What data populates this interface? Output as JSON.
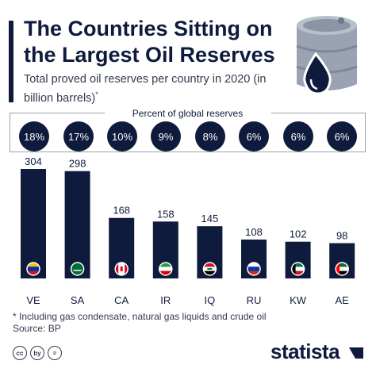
{
  "header": {
    "title": "The Countries Sitting on the Largest Oil Reserves",
    "subtitle": "Total proved oil reserves per country in 2020 (in billion barrels)",
    "subtitle_mark": "*"
  },
  "percent_section": {
    "label": "Percent of global reserves",
    "values": [
      "18%",
      "17%",
      "10%",
      "9%",
      "8%",
      "6%",
      "6%",
      "6%"
    ]
  },
  "chart_data": {
    "type": "bar",
    "categories": [
      "VE",
      "SA",
      "CA",
      "IR",
      "IQ",
      "RU",
      "KW",
      "AE"
    ],
    "values": [
      304,
      298,
      168,
      158,
      145,
      108,
      102,
      98
    ],
    "title": "The Countries Sitting on the Largest Oil Reserves",
    "subtitle": "Total proved oil reserves per country in 2020 (in billion barrels)",
    "ylim": [
      0,
      304
    ],
    "grid": false,
    "bar_color": "#0f1b3d"
  },
  "footer": {
    "note": "* Including gas condensate, natural gas liquids and crude oil",
    "source": "Source: BP",
    "brand": "statista",
    "license_icons": [
      "cc",
      "by",
      "="
    ]
  },
  "colors": {
    "navy": "#0f1b3d",
    "text_gray": "#333a4e"
  }
}
